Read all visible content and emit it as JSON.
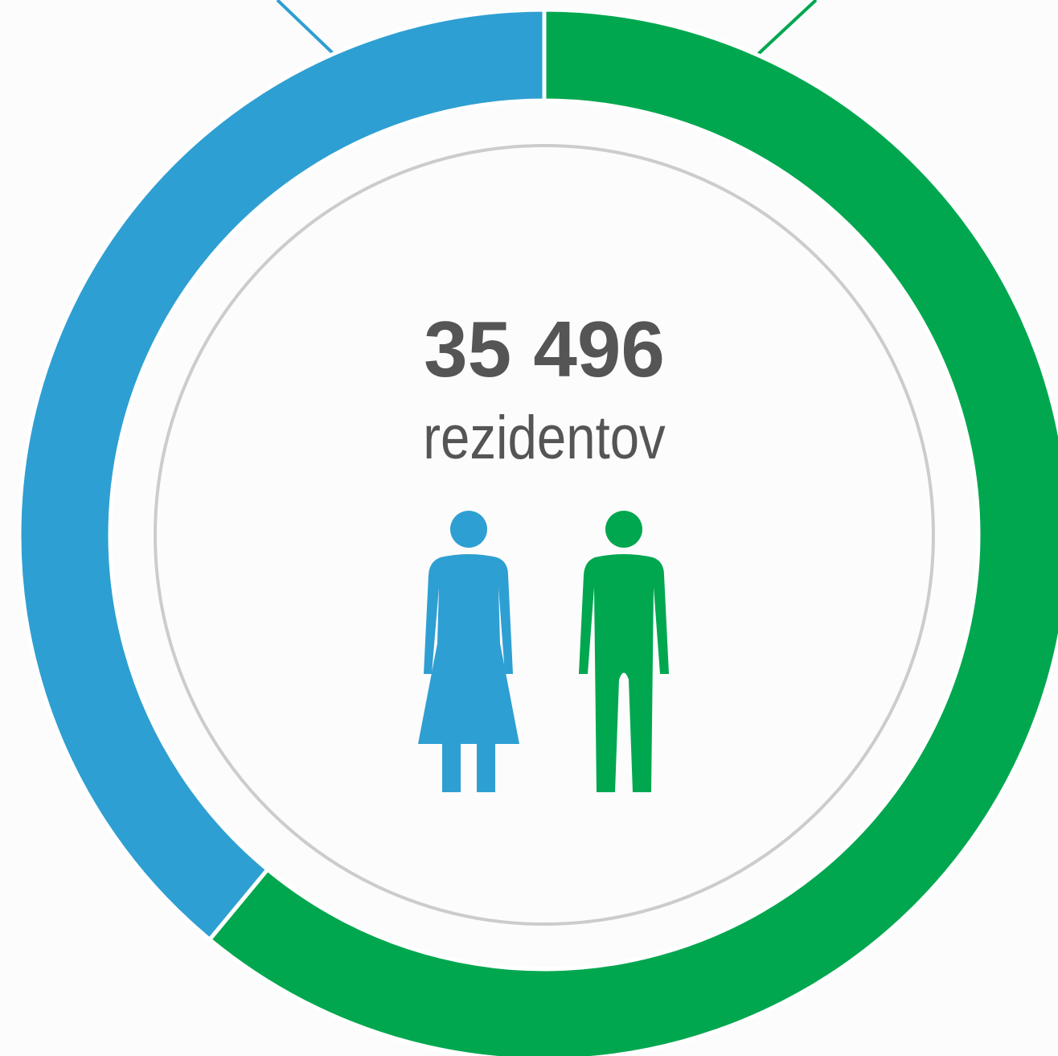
{
  "chart_data": {
    "type": "donut",
    "values": [
      61,
      39
    ],
    "colors": [
      "#00a74f",
      "#2e9fd2"
    ],
    "center_value": "35 496",
    "center_label": "rezidentov"
  }
}
